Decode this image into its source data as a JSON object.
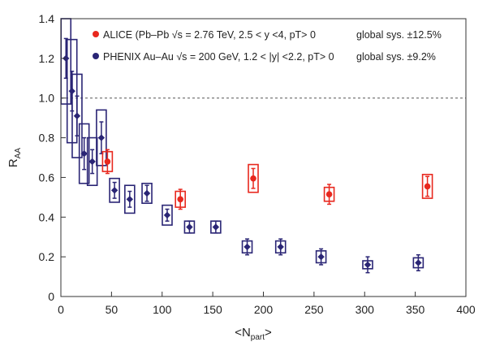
{
  "chart_data": {
    "type": "scatter",
    "xlabel": "<N",
    "xlabel_sub": "part",
    "xlabel_end": ">",
    "ylabel": "R",
    "ylabel_sub": "AA",
    "xlim": [
      0,
      400
    ],
    "ylim": [
      0,
      1.4
    ],
    "xticks": [
      "0",
      "50",
      "100",
      "150",
      "200",
      "250",
      "300",
      "350",
      "400"
    ],
    "yticks": [
      "0",
      "0.2",
      "0.4",
      "0.6",
      "0.8",
      "1.0",
      "1.2",
      "1.4"
    ],
    "reference_line": 1.0,
    "legend_placement": "top",
    "series": [
      {
        "name": "ALICE (Pb–Pb √s = 2.76 TeV, 2.5 < y <4, pT> 0",
        "sys_note": "global sys. ±12.5%",
        "color": "#e8281e",
        "marker": "circle",
        "points": [
          {
            "x": 46,
            "y": 0.68,
            "stat": 0.06,
            "sys_lo": 0.05,
            "sys_hi": 0.05
          },
          {
            "x": 118,
            "y": 0.49,
            "stat": 0.05,
            "sys_lo": 0.04,
            "sys_hi": 0.04
          },
          {
            "x": 190,
            "y": 0.595,
            "stat": 0.05,
            "sys_lo": 0.07,
            "sys_hi": 0.07
          },
          {
            "x": 265,
            "y": 0.515,
            "stat": 0.05,
            "sys_lo": 0.035,
            "sys_hi": 0.035
          },
          {
            "x": 362,
            "y": 0.555,
            "stat": 0.05,
            "sys_lo": 0.06,
            "sys_hi": 0.06
          }
        ]
      },
      {
        "name": "PHENIX Au–Au √s = 200 GeV, 1.2 < |y| <2.2, pT> 0",
        "sys_note": "global sys. ±9.2%",
        "color": "#2a2575",
        "marker": "diamond",
        "points": [
          {
            "x": 5,
            "y": 1.2,
            "stat": 0.1,
            "sys_lo": 0.23,
            "sys_hi": 0.2
          },
          {
            "x": 11,
            "y": 1.035,
            "stat": 0.1,
            "sys_lo": 0.26,
            "sys_hi": 0.26
          },
          {
            "x": 16,
            "y": 0.91,
            "stat": 0.1,
            "sys_lo": 0.21,
            "sys_hi": 0.21
          },
          {
            "x": 23,
            "y": 0.72,
            "stat": 0.08,
            "sys_lo": 0.15,
            "sys_hi": 0.15
          },
          {
            "x": 31,
            "y": 0.68,
            "stat": 0.06,
            "sys_lo": 0.12,
            "sys_hi": 0.12
          },
          {
            "x": 40,
            "y": 0.8,
            "stat": 0.08,
            "sys_lo": 0.14,
            "sys_hi": 0.14
          },
          {
            "x": 53,
            "y": 0.535,
            "stat": 0.04,
            "sys_lo": 0.06,
            "sys_hi": 0.06
          },
          {
            "x": 68,
            "y": 0.49,
            "stat": 0.04,
            "sys_lo": 0.07,
            "sys_hi": 0.07
          },
          {
            "x": 85,
            "y": 0.52,
            "stat": 0.04,
            "sys_lo": 0.05,
            "sys_hi": 0.05
          },
          {
            "x": 105,
            "y": 0.41,
            "stat": 0.03,
            "sys_lo": 0.05,
            "sys_hi": 0.05
          },
          {
            "x": 127,
            "y": 0.35,
            "stat": 0.03,
            "sys_lo": 0.03,
            "sys_hi": 0.03
          },
          {
            "x": 153,
            "y": 0.35,
            "stat": 0.03,
            "sys_lo": 0.03,
            "sys_hi": 0.03
          },
          {
            "x": 184,
            "y": 0.25,
            "stat": 0.04,
            "sys_lo": 0.03,
            "sys_hi": 0.03
          },
          {
            "x": 217,
            "y": 0.25,
            "stat": 0.04,
            "sys_lo": 0.03,
            "sys_hi": 0.03
          },
          {
            "x": 257,
            "y": 0.2,
            "stat": 0.04,
            "sys_lo": 0.03,
            "sys_hi": 0.03
          },
          {
            "x": 303,
            "y": 0.16,
            "stat": 0.04,
            "sys_lo": 0.02,
            "sys_hi": 0.02
          },
          {
            "x": 353,
            "y": 0.17,
            "stat": 0.04,
            "sys_lo": 0.025,
            "sys_hi": 0.025
          }
        ]
      }
    ]
  }
}
